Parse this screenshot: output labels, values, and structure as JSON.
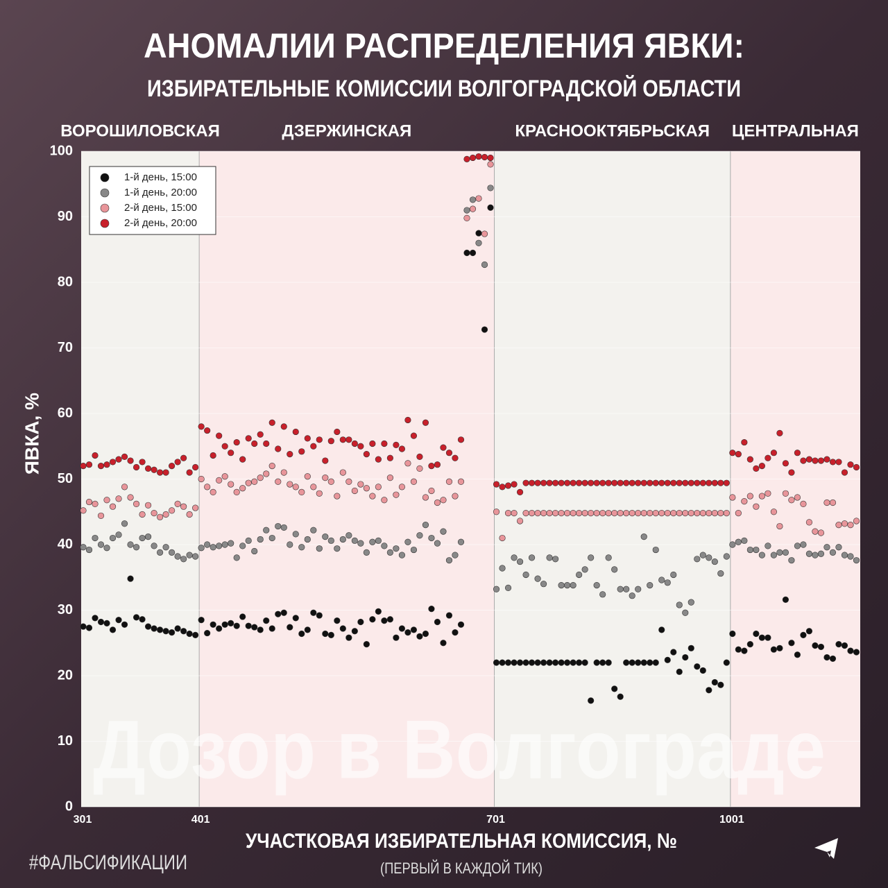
{
  "chart_data": {
    "type": "scatter",
    "title": "АНОМАЛИИ РАСПРЕДЕЛЕНИЯ ЯВКИ:",
    "subtitle": "ИЗБИРАТЕЛЬНЫЕ КОМИССИИ ВОЛГОГРАДСКОЙ ОБЛАСТИ",
    "sections": [
      "ВОРОШИЛОВСКАЯ",
      "ДЗЕРЖИНСКАЯ",
      "КРАСНООКТЯБРЬСКАЯ",
      "ЦЕНТРАЛЬНАЯ"
    ],
    "section_colors": [
      "#f3f2ee",
      "#fbeaea"
    ],
    "x_label": "УЧАСТКОВАЯ ИЗБИРАТЕЛЬНАЯ КОМИССИЯ, №",
    "x_note": "(ПЕРВЫЙ В КАЖДОЙ ТИК)",
    "y_label": "ЯВКА, %",
    "hashtag": "#ФАЛЬСИФИКАЦИИ",
    "watermark": "Дозор в Волгограде",
    "legend": "upper left",
    "ylim": [
      0,
      100
    ],
    "yticks": [
      0,
      10,
      20,
      30,
      40,
      50,
      60,
      70,
      80,
      90,
      100
    ],
    "categories": [
      "301",
      null,
      null,
      null,
      null,
      null,
      null,
      null,
      null,
      null,
      null,
      null,
      null,
      null,
      null,
      null,
      null,
      null,
      null,
      null,
      "401",
      null,
      null,
      null,
      null,
      null,
      null,
      null,
      null,
      null,
      null,
      null,
      null,
      null,
      null,
      null,
      null,
      null,
      null,
      null,
      null,
      null,
      null,
      null,
      null,
      null,
      null,
      null,
      null,
      null,
      null,
      null,
      null,
      null,
      null,
      null,
      null,
      null,
      null,
      null,
      null,
      null,
      null,
      null,
      null,
      null,
      null,
      null,
      null,
      null,
      "701",
      null,
      null,
      null,
      null,
      null,
      null,
      null,
      null,
      null,
      null,
      null,
      null,
      null,
      null,
      null,
      null,
      null,
      null,
      null,
      null,
      null,
      null,
      null,
      null,
      null,
      null,
      null,
      null,
      null,
      null,
      null,
      null,
      null,
      null,
      null,
      null,
      null,
      null,
      null,
      "1001",
      null,
      null,
      null,
      null,
      null,
      null,
      null,
      null,
      null,
      null,
      null,
      null,
      null,
      null,
      null,
      null,
      null,
      null,
      null,
      null,
      null
    ],
    "series": [
      {
        "name": "1-й день, 15:00",
        "color": "#111111",
        "values": [
          27.5,
          27.3,
          28.8,
          28.2,
          28,
          27,
          28.5,
          27.8,
          34.8,
          28.9,
          28.6,
          27.5,
          27.2,
          27,
          26.8,
          26.6,
          27.2,
          26.8,
          26.4,
          26.2,
          28.5,
          26.5,
          27.8,
          27.2,
          27.8,
          28,
          27.6,
          29,
          27.6,
          27.4,
          27,
          28.4,
          27.2,
          29.4,
          29.6,
          27.4,
          28.8,
          26.4,
          27,
          29.6,
          29.2,
          26.4,
          26.2,
          28.4,
          27.2,
          25.8,
          26.8,
          28.2,
          24.8,
          28.6,
          29.8,
          28.4,
          28.6,
          25.8,
          27.2,
          26.6,
          27,
          26,
          26.4,
          30.2,
          28.2,
          25,
          29.2,
          26.6,
          27.8,
          84.5,
          84.5,
          87.5,
          72.8,
          91.4,
          22,
          22,
          22,
          22,
          22,
          22,
          22,
          22,
          22,
          22,
          22,
          22,
          22,
          22,
          22,
          22,
          16.2,
          22,
          22,
          22,
          18,
          16.8,
          22,
          22,
          22,
          22,
          22,
          22,
          27,
          22.4,
          23.6,
          20.6,
          22.8,
          24.2,
          21.4,
          20.8,
          17.8,
          19,
          18.6,
          22,
          26.4,
          24,
          23.8,
          24.8,
          26.4,
          25.8,
          25.8,
          24,
          24.2,
          31.6,
          25,
          23.2,
          26.2,
          26.8,
          24.6,
          24.4,
          22.8,
          22.6,
          24.8,
          24.6,
          23.8,
          23.6
        ]
      },
      {
        "name": "1-й день, 20:00",
        "color": "#888888",
        "values": [
          39.6,
          39.2,
          41,
          40,
          39.5,
          41,
          41.5,
          43.2,
          40,
          39.6,
          41,
          41.2,
          39.8,
          38.8,
          39.6,
          38.8,
          38.2,
          37.8,
          38.4,
          38.2,
          39.5,
          40,
          39.6,
          39.8,
          40,
          40.2,
          38,
          39.8,
          40.6,
          39,
          40.8,
          42.2,
          41,
          42.8,
          42.6,
          40,
          41.6,
          39.6,
          40.8,
          42.2,
          39.4,
          41.2,
          40.6,
          39.4,
          40.8,
          41.4,
          40.6,
          40.2,
          38.8,
          40.4,
          40.6,
          39.8,
          38.8,
          39.4,
          38.4,
          40.4,
          39.2,
          41.4,
          43,
          41,
          40.2,
          42,
          37.6,
          38.4,
          40.4,
          91,
          92.6,
          86,
          82.7,
          94.4,
          33.2,
          36.4,
          33.4,
          38,
          37.4,
          35.4,
          38,
          34.8,
          34,
          38,
          37.8,
          33.8,
          33.8,
          33.8,
          35.4,
          36.2,
          38,
          33.8,
          32.4,
          38,
          36.2,
          33.2,
          33.2,
          32.2,
          33.2,
          41.2,
          33.8,
          39.2,
          34.6,
          34.2,
          35.4,
          30.8,
          29.6,
          31.2,
          37.8,
          38.4,
          38,
          37.4,
          35.6,
          38.2,
          40,
          40.4,
          40.6,
          39.2,
          39.2,
          38.4,
          39.8,
          38.4,
          38.8,
          38.8,
          37.6,
          39.8,
          40,
          38.6,
          38.4,
          38.6,
          39.6,
          38.8,
          39.6,
          38.4,
          38.2,
          37.6
        ]
      },
      {
        "name": "2-й день, 15:00",
        "color": "#e8959a",
        "values": [
          45.2,
          46.5,
          46.2,
          44.4,
          46.8,
          45.8,
          47,
          48.8,
          47.2,
          46.2,
          44.6,
          46,
          44.8,
          44.2,
          44.6,
          45.2,
          46.2,
          45.8,
          44.6,
          45.6,
          50,
          48.8,
          48,
          49.8,
          50.4,
          49.2,
          48,
          48.6,
          49.4,
          49.6,
          50.2,
          50.8,
          52,
          49.6,
          51,
          49.2,
          48.8,
          48,
          50.4,
          48.8,
          47.8,
          50.2,
          49.6,
          47.4,
          51,
          49.6,
          48.2,
          49.2,
          48.6,
          47.4,
          48.8,
          46.8,
          50.2,
          47.6,
          48.8,
          52.4,
          49.6,
          51.6,
          47.2,
          48.2,
          46.4,
          46.8,
          49.6,
          47.4,
          49.6,
          89.8,
          91.2,
          92.8,
          87.4,
          98,
          45,
          41,
          44.8,
          44.8,
          43.6,
          44.8,
          44.8,
          44.8,
          44.8,
          44.8,
          44.8,
          44.8,
          44.8,
          44.8,
          44.8,
          44.8,
          44.8,
          44.8,
          44.8,
          44.8,
          44.8,
          44.8,
          44.8,
          44.8,
          44.8,
          44.8,
          44.8,
          44.8,
          44.8,
          44.8,
          44.8,
          44.8,
          44.8,
          44.8,
          44.8,
          44.8,
          44.8,
          44.8,
          44.8,
          44.8,
          47.2,
          44.8,
          46.6,
          47.4,
          45.8,
          47.4,
          47.8,
          45,
          42.8,
          47.8,
          46.8,
          47.2,
          46.2,
          43.4,
          42,
          41.8,
          46.4,
          46.4,
          43,
          43.2,
          43,
          43.6
        ]
      },
      {
        "name": "2-й день, 20:00",
        "color": "#c8202b",
        "values": [
          52,
          52.2,
          53.6,
          52,
          52.2,
          52.6,
          53,
          53.4,
          52.8,
          51.8,
          52.6,
          51.6,
          51.4,
          51,
          51,
          52,
          52.6,
          53.2,
          51,
          51.8,
          58,
          57.4,
          53.6,
          56.6,
          55,
          54,
          55.6,
          53,
          56.2,
          55.4,
          56.8,
          55.4,
          58.6,
          54.6,
          58,
          53.8,
          57.2,
          54.2,
          56.2,
          55,
          56,
          52.8,
          55.8,
          57.2,
          56,
          56,
          55.4,
          55,
          53.8,
          55.4,
          53,
          55.4,
          53.2,
          55.2,
          54.6,
          59,
          56.6,
          53.4,
          58.6,
          52,
          52.2,
          54.8,
          54,
          53.2,
          56,
          98.8,
          99,
          99.2,
          99.1,
          99,
          49.2,
          48.8,
          49,
          49.2,
          48,
          49.4,
          49.4,
          49.4,
          49.4,
          49.4,
          49.4,
          49.4,
          49.4,
          49.4,
          49.4,
          49.4,
          49.4,
          49.4,
          49.4,
          49.4,
          49.4,
          49.4,
          49.4,
          49.4,
          49.4,
          49.4,
          49.4,
          49.4,
          49.4,
          49.4,
          49.4,
          49.4,
          49.4,
          49.4,
          49.4,
          49.4,
          49.4,
          49.4,
          49.4,
          49.4,
          54,
          53.8,
          55.6,
          53,
          51.6,
          52,
          53.2,
          54,
          57,
          52.4,
          51,
          54,
          52.8,
          53,
          52.8,
          52.8,
          53,
          52.6,
          52.6,
          51,
          52.2,
          51.8
        ]
      }
    ]
  }
}
